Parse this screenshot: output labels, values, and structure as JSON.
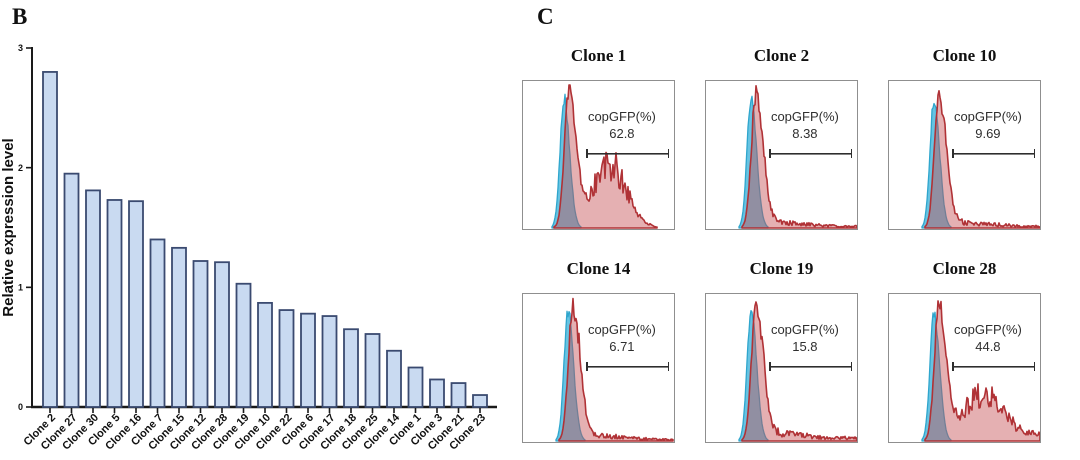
{
  "figure": {
    "panel_b_label": "B",
    "panel_c_label": "C"
  },
  "chart_data": [
    {
      "type": "bar",
      "panel": "B",
      "title": "",
      "xlabel": "",
      "ylabel": "Relative expression level",
      "ylim": [
        0,
        3
      ],
      "yticks": [
        0,
        1,
        2,
        3
      ],
      "grid": false,
      "categories": [
        "Clone 2",
        "Clone 27",
        "Clone 30",
        "Clone 5",
        "Clone 16",
        "Clone 7",
        "Clone 15",
        "Clone 12",
        "Clone 28",
        "Clone 19",
        "Clone 10",
        "Clone 22",
        "Clone 6",
        "Clone 17",
        "Clone 18",
        "Clone 25",
        "Clone 14",
        "Clone 1",
        "Clone 3",
        "Clone 21",
        "Clone 23"
      ],
      "values": [
        2.8,
        1.95,
        1.81,
        1.73,
        1.72,
        1.4,
        1.33,
        1.22,
        1.21,
        1.03,
        0.87,
        0.81,
        0.78,
        0.76,
        0.65,
        0.61,
        0.47,
        0.33,
        0.23,
        0.2,
        0.1
      ],
      "bar_fill": "#c9daf1",
      "bar_stroke": "#3a4a70",
      "axis_color": "#1a1a1a"
    },
    {
      "type": "histogram-grid",
      "panel": "C",
      "annotation_label": "copGFP(%)",
      "series_colors": {
        "control_fill": "#5fc0e0",
        "control_stroke": "#2fa6cd",
        "sample_stroke": "#b03236",
        "sample_fill": "rgba(197,80,84,0.45)"
      },
      "panels": [
        {
          "title": "Clone 1",
          "copGFP_percent": "62.8",
          "red_population": "high"
        },
        {
          "title": "Clone 2",
          "copGFP_percent": "8.38",
          "red_population": "low"
        },
        {
          "title": "Clone 10",
          "copGFP_percent": "9.69",
          "red_population": "low"
        },
        {
          "title": "Clone 14",
          "copGFP_percent": "6.71",
          "red_population": "low"
        },
        {
          "title": "Clone 19",
          "copGFP_percent": "15.8",
          "red_population": "low-med"
        },
        {
          "title": "Clone 28",
          "copGFP_percent": "44.8",
          "red_population": "medium"
        }
      ]
    }
  ]
}
